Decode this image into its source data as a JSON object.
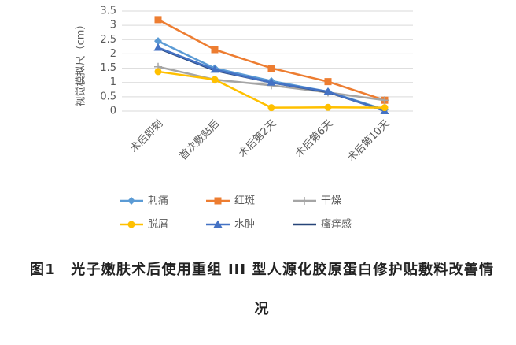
{
  "chart_data": {
    "type": "line",
    "y_label": "视觉模拟尺（cm）",
    "categories": [
      "术后即刻",
      "首次敷贴后",
      "术后第2天",
      "术后第6天",
      "术后第10天"
    ],
    "series": [
      {
        "name": "刺痛",
        "color": "#5b9bd5",
        "marker": "diamond",
        "values": [
          2.45,
          1.5,
          1.05,
          0.68,
          0.05
        ]
      },
      {
        "name": "红斑",
        "color": "#ed7d31",
        "marker": "square",
        "values": [
          3.2,
          2.15,
          1.5,
          1.03,
          0.38
        ]
      },
      {
        "name": "干燥",
        "color": "#a5a5a5",
        "marker": "plus",
        "values": [
          1.55,
          1.1,
          0.9,
          0.65,
          0.38
        ]
      },
      {
        "name": "脱屑",
        "color": "#ffc000",
        "marker": "circle",
        "values": [
          1.38,
          1.1,
          0.12,
          0.13,
          0.12
        ]
      },
      {
        "name": "水肿",
        "color": "#4472c4",
        "marker": "triangle",
        "values": [
          2.22,
          1.45,
          1.0,
          0.68,
          0.0
        ]
      },
      {
        "name": "瘙痒感",
        "color": "#264478",
        "marker": "none",
        "values": [
          2.2,
          1.42,
          1.0,
          0.66,
          0.02
        ]
      }
    ],
    "ylim": [
      0,
      3.5
    ],
    "yticks": [
      0,
      0.5,
      1,
      1.5,
      2,
      2.5,
      3,
      3.5
    ],
    "grid": true,
    "caption": "图1　光子嫩肤术后使用重组 III 型人源化胶原蛋白修护贴敷料改善情况"
  }
}
